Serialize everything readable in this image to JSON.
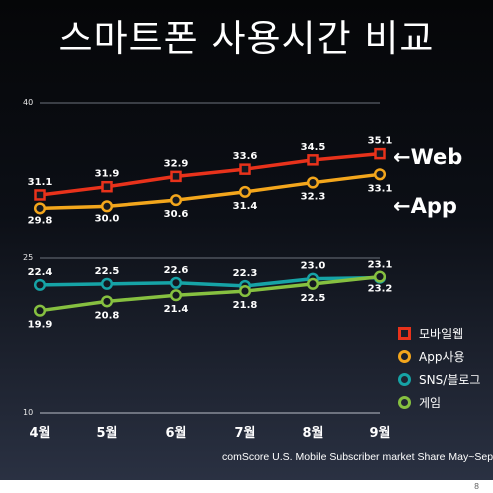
{
  "title": "스마트폰 사용시간 비교",
  "source_note": "comScore U.S. Mobile Subscriber market Share May~Sep",
  "page_number": "8",
  "callouts": {
    "web": "←Web",
    "app": "←App"
  },
  "chart_data": {
    "type": "line",
    "title": "스마트폰 사용시간 비교",
    "xlabel": "",
    "ylabel": "",
    "categories": [
      "4월",
      "5월",
      "6월",
      "7월",
      "8월",
      "9월"
    ],
    "ylim": [
      10,
      40
    ],
    "y_ticks": [
      "40",
      "25",
      "10"
    ],
    "grid": true,
    "legend_position": "right",
    "series": [
      {
        "name": "모바일웹",
        "marker": "square",
        "color": "#e8321b",
        "values": [
          31.1,
          31.9,
          32.9,
          33.6,
          34.5,
          35.1
        ],
        "labels": [
          "31.1",
          "31.9",
          "32.9",
          "33.6",
          "34.5",
          "35.1"
        ]
      },
      {
        "name": "App사용",
        "marker": "circle",
        "color": "#f3a61c",
        "values": [
          29.8,
          30.0,
          30.6,
          31.4,
          32.3,
          33.1
        ],
        "labels": [
          "29.8",
          "30.0",
          "30.6",
          "31.4",
          "32.3",
          "33.1"
        ]
      },
      {
        "name": "SNS/블로그",
        "marker": "circle",
        "color": "#16a3a6",
        "values": [
          22.4,
          22.5,
          22.6,
          22.3,
          23.0,
          23.1
        ],
        "labels": [
          "22.4",
          "22.5",
          "22.6",
          "22.3",
          "23.0",
          "23.1"
        ]
      },
      {
        "name": "게임",
        "marker": "circle",
        "color": "#86c040",
        "values": [
          19.9,
          20.8,
          21.4,
          21.8,
          22.5,
          23.2
        ],
        "labels": [
          "19.9",
          "20.8",
          "21.4",
          "21.8",
          "22.5",
          "23.2"
        ]
      }
    ]
  }
}
